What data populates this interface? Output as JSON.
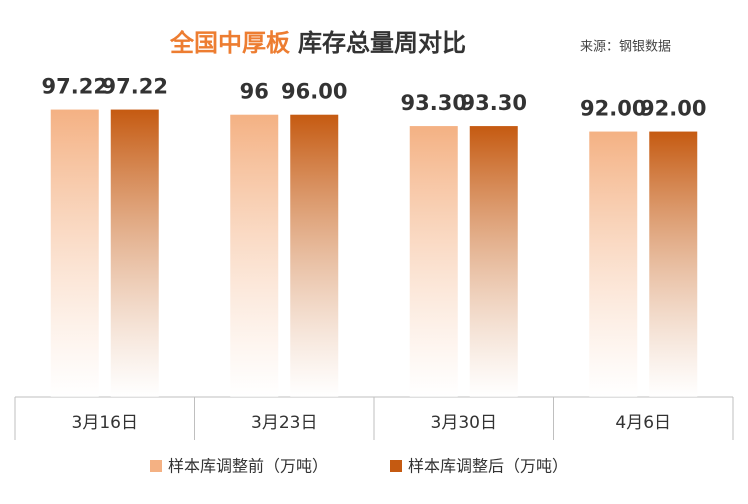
{
  "chart_data": {
    "type": "bar",
    "title": {
      "highlight": "全国中厚板",
      "main": "库存总量周对比"
    },
    "source": "来源：钢银数据",
    "categories": [
      "3月16日",
      "3月23日",
      "3月30日",
      "4月6日"
    ],
    "series": [
      {
        "name": "样本库调整前（万吨）",
        "color": "#f4b183",
        "values": [
          97.22,
          96,
          93.3,
          92
        ],
        "value_labels": [
          "97.22",
          "96",
          "93.30",
          "92.00"
        ]
      },
      {
        "name": "样本库调整后（万吨）",
        "color": "#c55a11",
        "values": [
          97.22,
          96,
          93.3,
          92
        ],
        "value_labels": [
          "97.22",
          "96.00",
          "93.30",
          "92.00"
        ]
      }
    ],
    "ylim": [
      29,
      104
    ]
  }
}
